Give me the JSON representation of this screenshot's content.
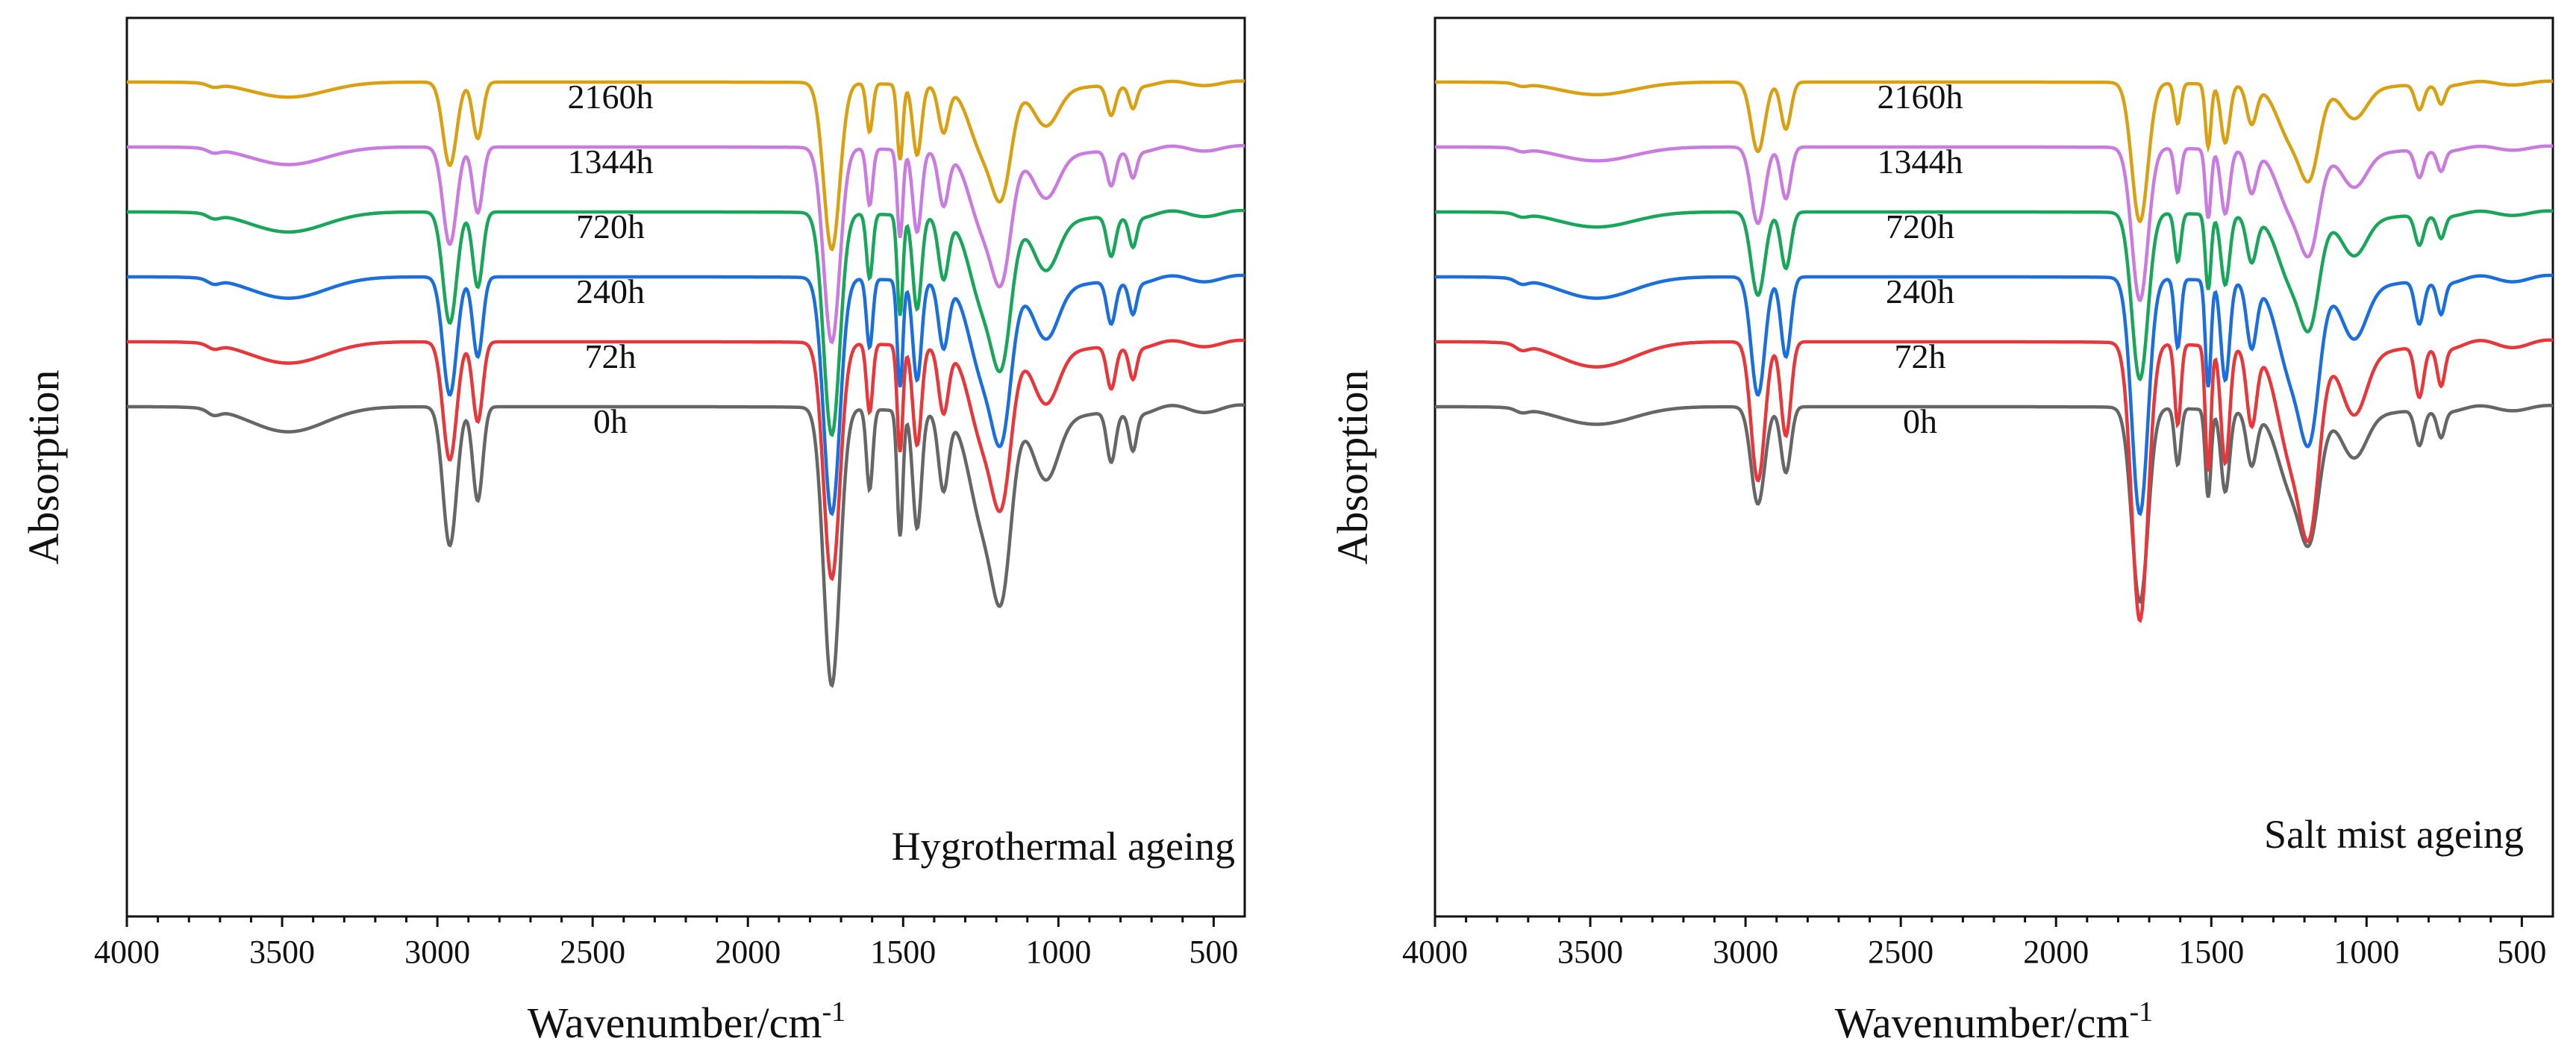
{
  "chart_data": [
    {
      "type": "line",
      "title": "",
      "annotation": "Hygrothermal ageing",
      "xlabel": "Wavenumber/cm",
      "xlabel_superscript": "-1",
      "ylabel": "Absorption",
      "xlim": [
        4000,
        400
      ],
      "xticks": [
        4000,
        3500,
        3000,
        2500,
        2000,
        1500,
        1000,
        500
      ],
      "xtick_labels": [
        "4000",
        "3500",
        "3000",
        "2500",
        "2000",
        "1500",
        "1000",
        "500"
      ],
      "y_ticks_shown": false,
      "series": [
        {
          "name": "0h",
          "color": "#666666",
          "offset": 0,
          "depth": 1.0
        },
        {
          "name": "72h",
          "color": "#e8373a",
          "offset": 1,
          "depth": 0.85
        },
        {
          "name": "240h",
          "color": "#1a6fdc",
          "offset": 2,
          "depth": 0.85
        },
        {
          "name": "720h",
          "color": "#1aa65a",
          "offset": 3,
          "depth": 0.8
        },
        {
          "name": "1344h",
          "color": "#c97be0",
          "offset": 4,
          "depth": 0.7
        },
        {
          "name": "2160h",
          "color": "#d9a012",
          "offset": 5,
          "depth": 0.6
        }
      ]
    },
    {
      "type": "line",
      "title": "",
      "annotation": "Salt mist ageing",
      "xlabel": "Wavenumber/cm",
      "xlabel_superscript": "-1",
      "ylabel": "Absorption",
      "xlim": [
        4000,
        400
      ],
      "xticks": [
        4000,
        3500,
        3000,
        2500,
        2000,
        1500,
        1000,
        500
      ],
      "xtick_labels": [
        "4000",
        "3500",
        "3000",
        "2500",
        "2000",
        "1500",
        "1000",
        "500"
      ],
      "y_ticks_shown": false,
      "series": [
        {
          "name": "0h",
          "color": "#666666",
          "offset": 0,
          "depth": 0.7
        },
        {
          "name": "72h",
          "color": "#e8373a",
          "offset": 1,
          "depth": 1.0
        },
        {
          "name": "240h",
          "color": "#1a6fdc",
          "offset": 2,
          "depth": 0.85
        },
        {
          "name": "720h",
          "color": "#1aa65a",
          "offset": 3,
          "depth": 0.6
        },
        {
          "name": "1344h",
          "color": "#c97be0",
          "offset": 4,
          "depth": 0.55
        },
        {
          "name": "2160h",
          "color": "#d9a012",
          "offset": 5,
          "depth": 0.5
        }
      ]
    }
  ]
}
